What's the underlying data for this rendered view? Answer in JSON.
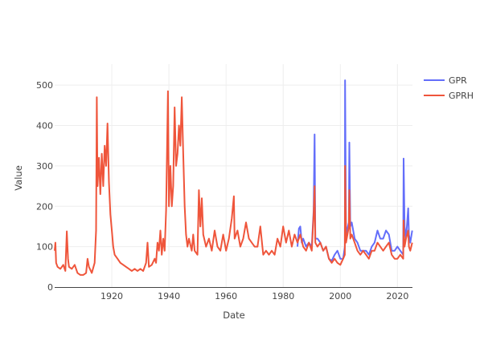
{
  "chart_data": {
    "type": "line",
    "title": "",
    "xlabel": "Date",
    "ylabel": "Value",
    "xlim": [
      "1900-01",
      "2025-04"
    ],
    "ylim": [
      0,
      540
    ],
    "grid": true,
    "legend_position": "top-right",
    "x_ticks": [
      "1920",
      "1940",
      "1960",
      "1980",
      "2000",
      "2020"
    ],
    "y_ticks": [
      "0",
      "100",
      "200",
      "300",
      "400",
      "500"
    ],
    "series": [
      {
        "name": "GPR",
        "color": "#636efa",
        "points": [
          [
            "1985-01",
            100
          ],
          [
            "1985-07",
            145
          ],
          [
            "1986-01",
            150
          ],
          [
            "1986-07",
            110
          ],
          [
            "1987-01",
            120
          ],
          [
            "1988-01",
            100
          ],
          [
            "1989-01",
            110
          ],
          [
            "1990-01",
            100
          ],
          [
            "1990-09",
            190
          ],
          [
            "1991-01",
            378
          ],
          [
            "1991-04",
            120
          ],
          [
            "1992-01",
            120
          ],
          [
            "1993-01",
            110
          ],
          [
            "1994-01",
            90
          ],
          [
            "1995-01",
            100
          ],
          [
            "1996-01",
            70
          ],
          [
            "1997-01",
            65
          ],
          [
            "1998-01",
            80
          ],
          [
            "1999-01",
            90
          ],
          [
            "2000-01",
            70
          ],
          [
            "2001-01",
            70
          ],
          [
            "2001-08",
            100
          ],
          [
            "2001-09",
            512
          ],
          [
            "2002-01",
            130
          ],
          [
            "2003-01",
            160
          ],
          [
            "2003-03",
            358
          ],
          [
            "2003-07",
            150
          ],
          [
            "2004-01",
            160
          ],
          [
            "2005-01",
            120
          ],
          [
            "2006-01",
            110
          ],
          [
            "2007-01",
            90
          ],
          [
            "2008-01",
            90
          ],
          [
            "2009-01",
            90
          ],
          [
            "2010-01",
            80
          ],
          [
            "2011-01",
            100
          ],
          [
            "2012-01",
            110
          ],
          [
            "2013-01",
            140
          ],
          [
            "2014-01",
            120
          ],
          [
            "2015-01",
            120
          ],
          [
            "2016-01",
            140
          ],
          [
            "2017-01",
            130
          ],
          [
            "2018-01",
            90
          ],
          [
            "2019-01",
            90
          ],
          [
            "2020-01",
            100
          ],
          [
            "2021-01",
            90
          ],
          [
            "2022-01",
            80
          ],
          [
            "2022-03",
            318
          ],
          [
            "2022-07",
            150
          ],
          [
            "2023-01",
            120
          ],
          [
            "2023-10",
            195
          ],
          [
            "2024-01",
            130
          ],
          [
            "2024-07",
            110
          ],
          [
            "2025-03",
            140
          ]
        ]
      },
      {
        "name": "GPRH",
        "color": "#EF553B",
        "points": [
          [
            "1900-01",
            90
          ],
          [
            "1900-04",
            110
          ],
          [
            "1900-07",
            60
          ],
          [
            "1901-01",
            50
          ],
          [
            "1902-01",
            45
          ],
          [
            "1903-01",
            55
          ],
          [
            "1903-10",
            40
          ],
          [
            "1904-04",
            138
          ],
          [
            "1904-09",
            70
          ],
          [
            "1905-01",
            50
          ],
          [
            "1906-01",
            45
          ],
          [
            "1907-01",
            55
          ],
          [
            "1908-01",
            35
          ],
          [
            "1909-01",
            30
          ],
          [
            "1910-01",
            30
          ],
          [
            "1911-01",
            35
          ],
          [
            "1911-07",
            70
          ],
          [
            "1912-01",
            50
          ],
          [
            "1913-01",
            35
          ],
          [
            "1914-01",
            60
          ],
          [
            "1914-07",
            140
          ],
          [
            "1914-10",
            470
          ],
          [
            "1915-01",
            250
          ],
          [
            "1915-07",
            320
          ],
          [
            "1916-01",
            230
          ],
          [
            "1916-07",
            330
          ],
          [
            "1917-01",
            250
          ],
          [
            "1917-07",
            350
          ],
          [
            "1918-01",
            300
          ],
          [
            "1918-07",
            405
          ],
          [
            "1919-01",
            260
          ],
          [
            "1919-07",
            180
          ],
          [
            "1920-01",
            140
          ],
          [
            "1920-07",
            100
          ],
          [
            "1921-01",
            80
          ],
          [
            "1922-01",
            70
          ],
          [
            "1923-01",
            60
          ],
          [
            "1924-01",
            55
          ],
          [
            "1925-01",
            50
          ],
          [
            "1926-01",
            45
          ],
          [
            "1927-01",
            40
          ],
          [
            "1928-01",
            45
          ],
          [
            "1929-01",
            40
          ],
          [
            "1930-01",
            45
          ],
          [
            "1931-01",
            40
          ],
          [
            "1932-01",
            60
          ],
          [
            "1932-07",
            110
          ],
          [
            "1933-01",
            50
          ],
          [
            "1934-01",
            55
          ],
          [
            "1935-01",
            70
          ],
          [
            "1935-07",
            60
          ],
          [
            "1936-01",
            110
          ],
          [
            "1936-07",
            90
          ],
          [
            "1937-01",
            140
          ],
          [
            "1937-07",
            80
          ],
          [
            "1938-01",
            120
          ],
          [
            "1938-07",
            90
          ],
          [
            "1939-01",
            190
          ],
          [
            "1939-09",
            485
          ],
          [
            "1940-01",
            200
          ],
          [
            "1940-07",
            300
          ],
          [
            "1941-01",
            200
          ],
          [
            "1941-07",
            250
          ],
          [
            "1942-01",
            445
          ],
          [
            "1942-07",
            300
          ],
          [
            "1943-01",
            330
          ],
          [
            "1943-07",
            400
          ],
          [
            "1944-01",
            350
          ],
          [
            "1944-07",
            470
          ],
          [
            "1945-01",
            330
          ],
          [
            "1945-07",
            200
          ],
          [
            "1946-01",
            130
          ],
          [
            "1946-07",
            100
          ],
          [
            "1947-01",
            120
          ],
          [
            "1948-01",
            90
          ],
          [
            "1948-07",
            130
          ],
          [
            "1949-01",
            90
          ],
          [
            "1950-01",
            80
          ],
          [
            "1950-07",
            240
          ],
          [
            "1951-01",
            150
          ],
          [
            "1951-07",
            220
          ],
          [
            "1952-01",
            130
          ],
          [
            "1953-01",
            100
          ],
          [
            "1954-01",
            120
          ],
          [
            "1955-01",
            90
          ],
          [
            "1956-01",
            140
          ],
          [
            "1957-01",
            100
          ],
          [
            "1958-01",
            90
          ],
          [
            "1959-01",
            130
          ],
          [
            "1960-01",
            90
          ],
          [
            "1961-01",
            120
          ],
          [
            "1962-01",
            170
          ],
          [
            "1962-10",
            225
          ],
          [
            "1963-01",
            120
          ],
          [
            "1964-01",
            140
          ],
          [
            "1965-01",
            100
          ],
          [
            "1966-01",
            120
          ],
          [
            "1967-01",
            160
          ],
          [
            "1968-01",
            120
          ],
          [
            "1969-01",
            110
          ],
          [
            "1970-01",
            100
          ],
          [
            "1971-01",
            100
          ],
          [
            "1972-01",
            150
          ],
          [
            "1973-01",
            80
          ],
          [
            "1974-01",
            90
          ],
          [
            "1975-01",
            80
          ],
          [
            "1976-01",
            90
          ],
          [
            "1977-01",
            80
          ],
          [
            "1978-01",
            120
          ],
          [
            "1979-01",
            100
          ],
          [
            "1980-01",
            150
          ],
          [
            "1981-01",
            110
          ],
          [
            "1982-01",
            140
          ],
          [
            "1983-01",
            100
          ],
          [
            "1984-01",
            130
          ],
          [
            "1985-01",
            110
          ],
          [
            "1986-01",
            130
          ],
          [
            "1987-01",
            100
          ],
          [
            "1988-01",
            90
          ],
          [
            "1989-01",
            110
          ],
          [
            "1990-01",
            90
          ],
          [
            "1990-09",
            180
          ],
          [
            "1991-01",
            250
          ],
          [
            "1991-04",
            110
          ],
          [
            "1992-01",
            100
          ],
          [
            "1993-01",
            110
          ],
          [
            "1994-01",
            90
          ],
          [
            "1995-01",
            100
          ],
          [
            "1996-01",
            70
          ],
          [
            "1997-01",
            60
          ],
          [
            "1998-01",
            70
          ],
          [
            "1999-01",
            60
          ],
          [
            "2000-01",
            55
          ],
          [
            "2001-01",
            70
          ],
          [
            "2001-08",
            80
          ],
          [
            "2001-09",
            300
          ],
          [
            "2002-01",
            110
          ],
          [
            "2003-01",
            150
          ],
          [
            "2003-03",
            240
          ],
          [
            "2003-07",
            120
          ],
          [
            "2004-01",
            130
          ],
          [
            "2005-01",
            110
          ],
          [
            "2006-01",
            90
          ],
          [
            "2007-01",
            80
          ],
          [
            "2008-01",
            90
          ],
          [
            "2009-01",
            80
          ],
          [
            "2010-01",
            70
          ],
          [
            "2011-01",
            90
          ],
          [
            "2012-01",
            90
          ],
          [
            "2013-01",
            110
          ],
          [
            "2014-01",
            100
          ],
          [
            "2015-01",
            90
          ],
          [
            "2016-01",
            100
          ],
          [
            "2017-01",
            110
          ],
          [
            "2018-01",
            80
          ],
          [
            "2019-01",
            70
          ],
          [
            "2020-01",
            70
          ],
          [
            "2021-01",
            80
          ],
          [
            "2022-01",
            70
          ],
          [
            "2022-03",
            165
          ],
          [
            "2022-07",
            100
          ],
          [
            "2023-01",
            120
          ],
          [
            "2023-10",
            140
          ],
          [
            "2024-01",
            100
          ],
          [
            "2024-07",
            90
          ],
          [
            "2025-03",
            110
          ]
        ]
      }
    ]
  }
}
